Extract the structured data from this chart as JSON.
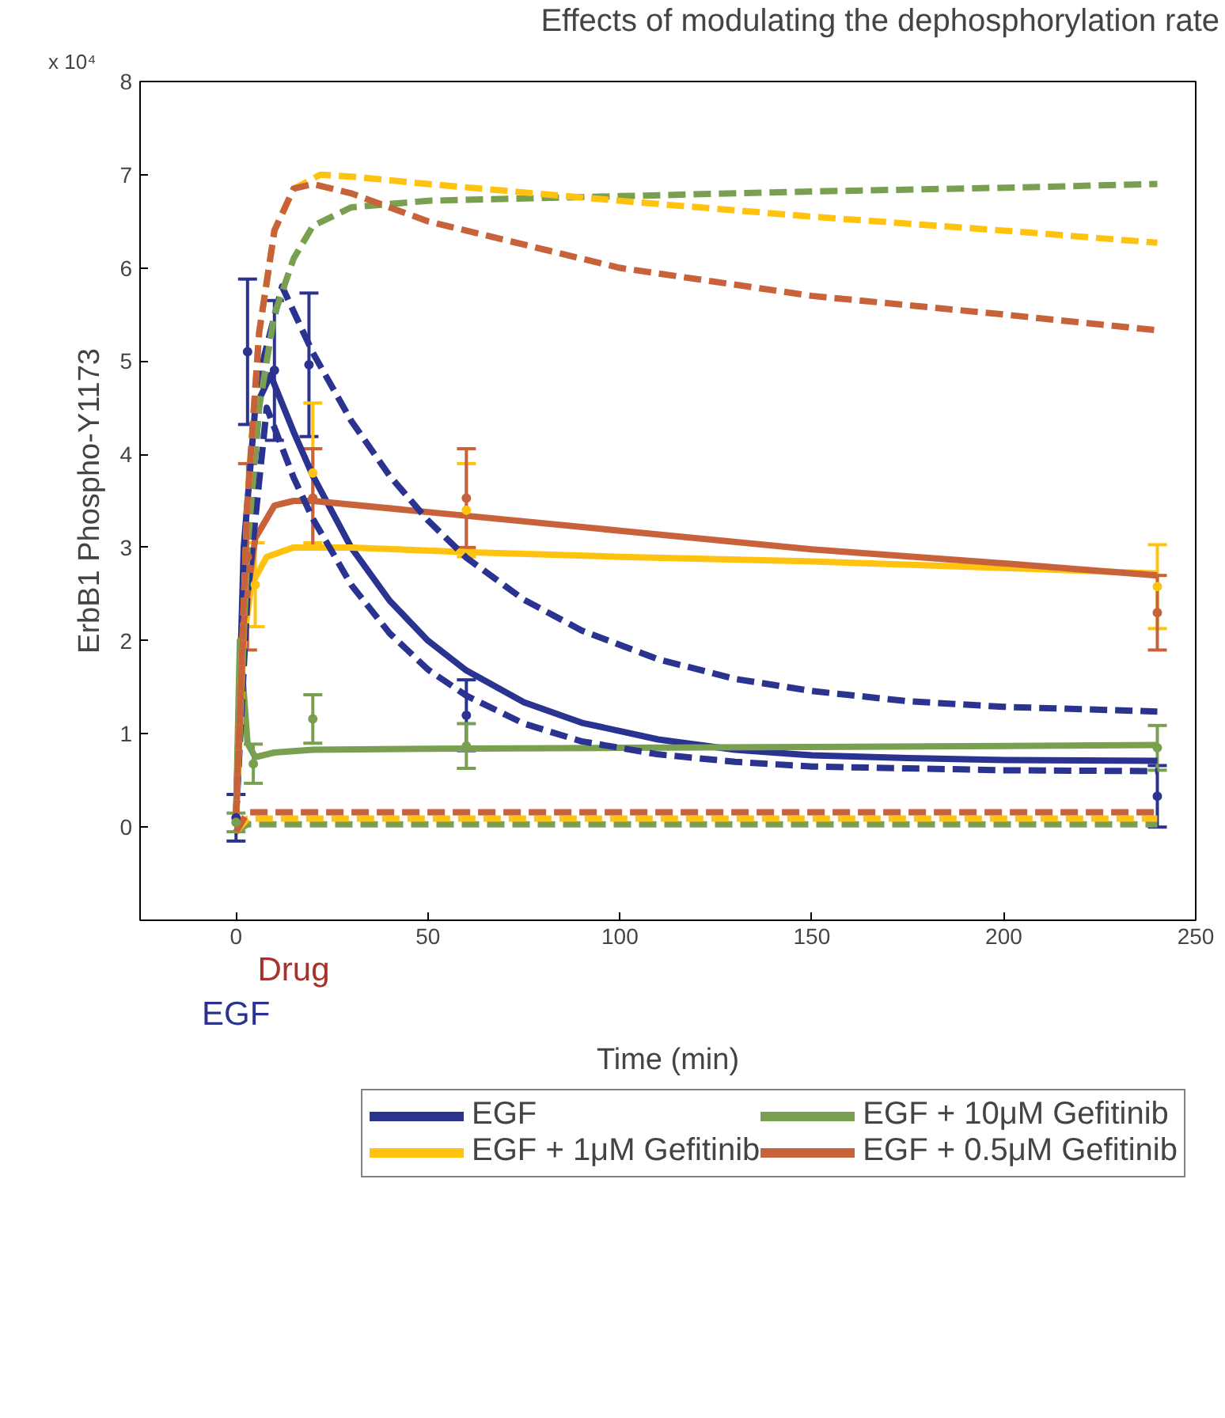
{
  "chart_data": {
    "type": "line",
    "title": "Effects of modulating the dephosphorylation rate",
    "xlabel": "Time (min)",
    "ylabel": "ErbB1 Phospho-Y1173",
    "xlim": [
      -25,
      250
    ],
    "ylim": [
      -1,
      8
    ],
    "xticks": [
      0,
      50,
      100,
      150,
      200,
      250
    ],
    "yticks": [
      0,
      1,
      2,
      3,
      4,
      5,
      6,
      7,
      8
    ],
    "grid": false,
    "legend": "bottom",
    "annotations": [
      "x 10⁴",
      "Drug",
      "EGF"
    ],
    "series": [
      {
        "name": "EGF",
        "line_style": "solid",
        "color": "#2b3390",
        "x": [
          0,
          2,
          5,
          9,
          15,
          20,
          30,
          40,
          50,
          60,
          75,
          90,
          110,
          130,
          150,
          175,
          200,
          240
        ],
        "values": [
          0.1,
          3.0,
          4.5,
          4.85,
          4.24,
          3.77,
          3.0,
          2.43,
          2.0,
          1.68,
          1.34,
          1.12,
          0.94,
          0.83,
          0.77,
          0.74,
          0.72,
          0.71
        ]
      },
      {
        "name": "EGF + 10μM Gefitinib",
        "line_style": "solid",
        "color": "#78a050",
        "x": [
          0,
          1,
          3,
          5,
          10,
          20,
          50,
          100,
          150,
          200,
          240
        ],
        "values": [
          0.1,
          2.0,
          0.9,
          0.75,
          0.8,
          0.83,
          0.84,
          0.85,
          0.86,
          0.87,
          0.88
        ]
      },
      {
        "name": "EGF + 1μM Gefitinib",
        "line_style": "solid",
        "color": "#ffc20e",
        "x": [
          0,
          2,
          4,
          8,
          15,
          30,
          60,
          100,
          150,
          200,
          240
        ],
        "values": [
          0.1,
          2.0,
          2.6,
          2.9,
          3.0,
          3.0,
          2.95,
          2.9,
          2.85,
          2.78,
          2.72
        ]
      },
      {
        "name": "EGF + 0.5μM Gefitinib",
        "line_style": "solid",
        "color": "#c8623a",
        "x": [
          0,
          2,
          5,
          10,
          15,
          20,
          50,
          100,
          150,
          200,
          240
        ],
        "values": [
          0.1,
          2.2,
          3.1,
          3.45,
          3.5,
          3.5,
          3.38,
          3.18,
          2.98,
          2.83,
          2.7
        ]
      },
      {
        "type": "line",
        "line_style": "dashed",
        "color": "#2b3390",
        "x": [
          0,
          3,
          7,
          12,
          20,
          30,
          40,
          50,
          60,
          75,
          90,
          110,
          130,
          150,
          175,
          200,
          240
        ],
        "values": [
          0.1,
          3.0,
          5.0,
          5.8,
          5.09,
          4.36,
          3.77,
          3.29,
          2.89,
          2.44,
          2.11,
          1.8,
          1.59,
          1.46,
          1.35,
          1.29,
          1.24
        ]
      },
      {
        "type": "line",
        "line_style": "dashed",
        "color": "#2b3390",
        "x": [
          0,
          3,
          8,
          15,
          20,
          30,
          40,
          50,
          60,
          75,
          90,
          110,
          130,
          150,
          175,
          200,
          240
        ],
        "values": [
          0.1,
          2.5,
          4.5,
          3.75,
          3.31,
          2.6,
          2.08,
          1.69,
          1.41,
          1.11,
          0.92,
          0.78,
          0.7,
          0.65,
          0.63,
          0.61,
          0.6
        ]
      },
      {
        "type": "line",
        "line_style": "dashed",
        "color": "#78a050",
        "x": [
          0,
          3,
          6,
          10,
          15,
          20,
          30,
          50,
          100,
          150,
          200,
          240
        ],
        "values": [
          0.1,
          3.0,
          4.5,
          5.5,
          6.1,
          6.45,
          6.65,
          6.72,
          6.77,
          6.82,
          6.86,
          6.9
        ]
      },
      {
        "type": "line",
        "line_style": "dashed",
        "color": "#ffc20e",
        "x": [
          0,
          3,
          6,
          10,
          15,
          22,
          30,
          50,
          100,
          150,
          200,
          240
        ],
        "values": [
          0.1,
          3.5,
          5.3,
          6.4,
          6.85,
          7.0,
          6.98,
          6.9,
          6.72,
          6.55,
          6.4,
          6.27
        ]
      },
      {
        "type": "line",
        "line_style": "dashed",
        "color": "#c8623a",
        "x": [
          0,
          3,
          6,
          10,
          15,
          20,
          30,
          50,
          100,
          150,
          200,
          240
        ],
        "values": [
          0.1,
          3.5,
          5.3,
          6.4,
          6.85,
          6.9,
          6.8,
          6.5,
          6.0,
          5.7,
          5.5,
          5.33
        ]
      },
      {
        "type": "line",
        "line_style": "dashed",
        "color": "#78a050",
        "x": [
          0,
          3,
          240
        ],
        "values": [
          -0.05,
          0.03,
          0.03
        ]
      },
      {
        "type": "line",
        "line_style": "dashed",
        "color": "#ffc20e",
        "x": [
          0,
          3,
          240
        ],
        "values": [
          -0.05,
          0.09,
          0.09
        ]
      },
      {
        "type": "line",
        "line_style": "dashed",
        "color": "#c8623a",
        "x": [
          0,
          3,
          240
        ],
        "values": [
          -0.05,
          0.16,
          0.16
        ]
      },
      {
        "type": "scatter",
        "marker": "circle",
        "color": "#2b3390",
        "x": [
          0,
          3,
          10,
          19,
          60,
          240
        ],
        "values": [
          0.1,
          5.1,
          4.9,
          4.96,
          1.2,
          0.33
        ],
        "errors": [
          0.25,
          0.78,
          0.75,
          0.77,
          0.38,
          0.33
        ]
      },
      {
        "type": "scatter",
        "marker": "circle",
        "color": "#78a050",
        "x": [
          0,
          4.5,
          20,
          60,
          240
        ],
        "values": [
          0.05,
          0.68,
          1.16,
          0.87,
          0.85
        ],
        "errors": [
          0.1,
          0.21,
          0.26,
          0.24,
          0.24
        ]
      },
      {
        "type": "scatter",
        "marker": "circle",
        "color": "#ffc20e",
        "x": [
          5,
          20,
          60,
          240
        ],
        "values": [
          2.6,
          3.8,
          3.4,
          2.58
        ],
        "errors": [
          0.45,
          0.75,
          0.5,
          0.45
        ]
      },
      {
        "type": "scatter",
        "marker": "circle",
        "color": "#c8623a",
        "x": [
          3,
          20,
          60,
          240
        ],
        "values": [
          2.9,
          3.53,
          3.53,
          2.3
        ],
        "errors": [
          1.0,
          0.53,
          0.53,
          0.4
        ]
      }
    ]
  }
}
